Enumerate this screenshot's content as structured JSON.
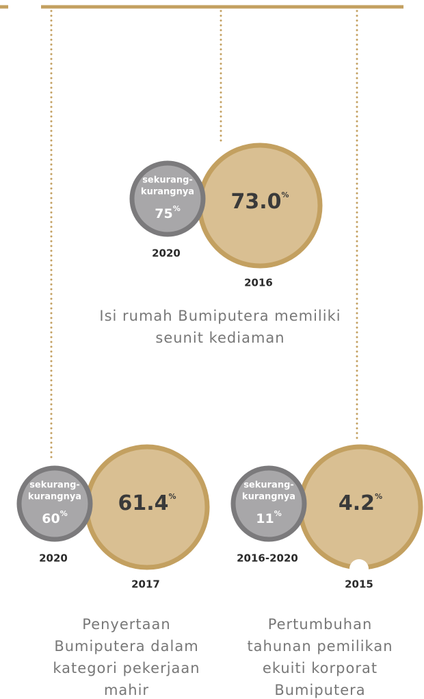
{
  "items": [
    {
      "small_label": [
        "sekurang-",
        "kurangnya"
      ],
      "small_value": "75",
      "small_unit": "%",
      "small_year": "2020",
      "big_value": "73.0",
      "big_unit": "%",
      "big_year": "2016",
      "caption": [
        "Isi rumah Bumiputera memiliki",
        "seunit kediaman"
      ]
    },
    {
      "small_label": [
        "sekurang-",
        "kurangnya"
      ],
      "small_value": "60",
      "small_unit": "%",
      "small_year": "2020",
      "big_value": "61.4",
      "big_unit": "%",
      "big_year": "2017",
      "caption": [
        "Penyertaan",
        "Bumiputera dalam",
        "kategori pekerjaan",
        "mahir"
      ]
    },
    {
      "small_label": [
        "sekurang-",
        "kurangnya"
      ],
      "small_value": "11",
      "small_unit": "%",
      "small_year": "2016-2020",
      "big_value": "4.2",
      "big_unit": "%",
      "big_year": "2015",
      "caption": [
        "Pertumbuhan",
        "tahunan pemilikan",
        "ekuiti korporat",
        "Bumiputera"
      ]
    }
  ]
}
